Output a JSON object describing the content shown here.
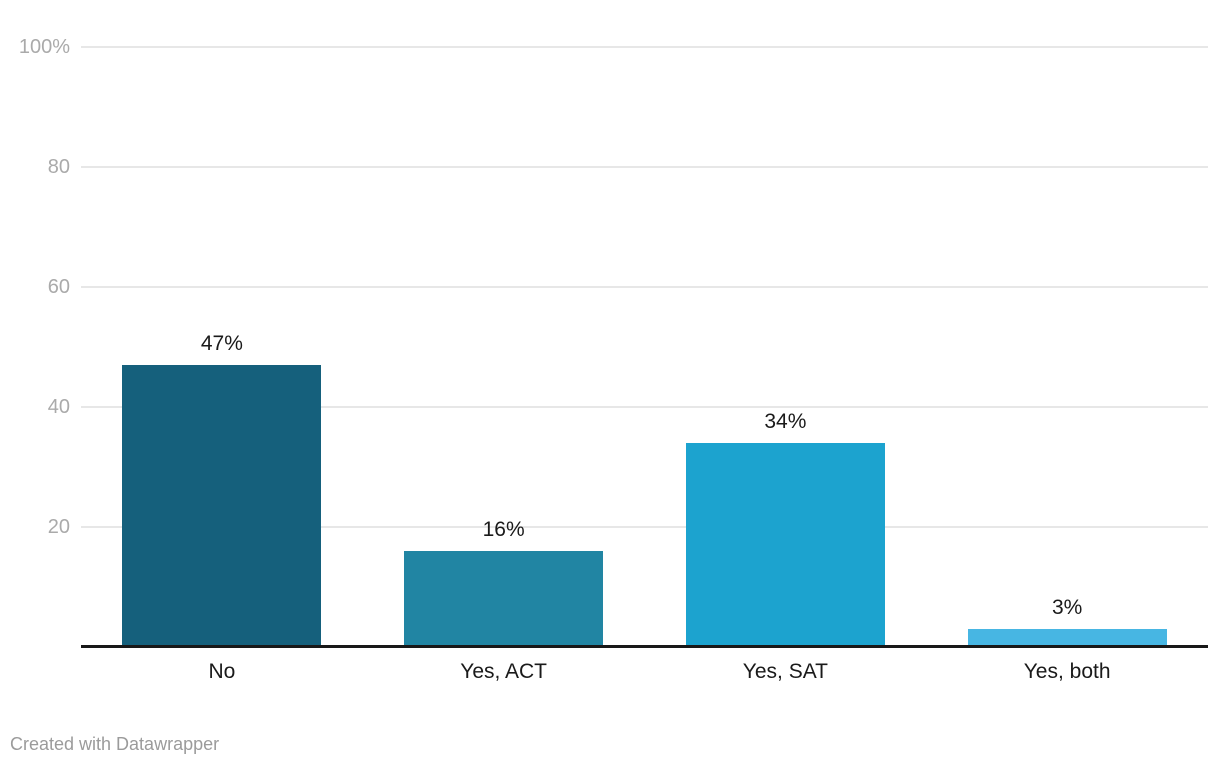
{
  "chart_data": {
    "type": "bar",
    "title": "",
    "xlabel": "",
    "ylabel": "",
    "categories": [
      "No",
      "Yes, ACT",
      "Yes, SAT",
      "Yes, both"
    ],
    "values": [
      47,
      16,
      34,
      3
    ],
    "value_labels": [
      "47%",
      "16%",
      "34%",
      "3%"
    ],
    "bar_colors": [
      "#15607c",
      "#2185a3",
      "#1ca3cf",
      "#47b6e3"
    ],
    "ylim": [
      0,
      100
    ],
    "y_ticks": [
      {
        "value": 100,
        "label": "100%"
      },
      {
        "value": 80,
        "label": "80"
      },
      {
        "value": 60,
        "label": "60"
      },
      {
        "value": 40,
        "label": "40"
      },
      {
        "value": 20,
        "label": "20"
      }
    ],
    "grid": true,
    "legend": "none"
  },
  "footer": {
    "credit": "Created with Datawrapper"
  },
  "colors": {
    "background": "#ffffff",
    "gridline": "#e7e7e7",
    "baseline": "#181818",
    "axis_tick_text": "#aaaaaa",
    "label_text": "#1a1a1a",
    "footer_text": "#9b9b9b"
  }
}
